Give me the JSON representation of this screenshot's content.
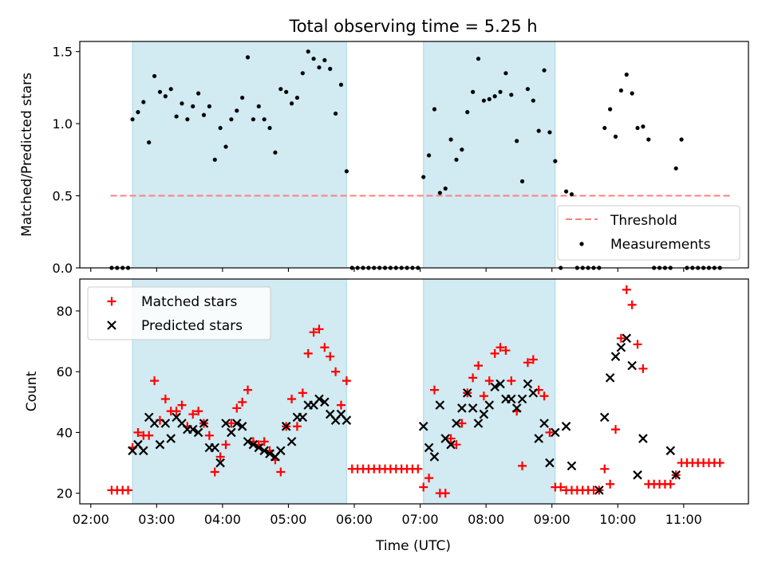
{
  "title": "Total observing time = 5.25 h",
  "colors": {
    "shade": "#add8e6",
    "threshold": "#ff7f7f",
    "matched": "#ff0000",
    "predicted": "#000000",
    "measurements": "#000000"
  },
  "chart_data": [
    {
      "type": "scatter",
      "ylabel": "Matched/Predicted stars",
      "xlabel": "",
      "xlim": [
        "01:50",
        "11:59"
      ],
      "ylim": [
        0,
        1.57
      ],
      "yticks": [
        "0.0",
        "0.5",
        "1.0",
        "1.5"
      ],
      "ytick_values": [
        0,
        0.5,
        1.0,
        1.5
      ],
      "legend_position": "lower-right",
      "shaded_intervals": [
        [
          "02:38",
          "05:53"
        ],
        [
          "07:03",
          "09:03"
        ]
      ],
      "threshold": {
        "name": "Threshold",
        "value": 0.5,
        "x_range": [
          "02:18",
          "11:43"
        ]
      },
      "series": [
        {
          "name": "Measurements",
          "marker": "dot",
          "x": [
            "02:19",
            "02:24",
            "02:29",
            "02:34",
            "02:38",
            "02:43",
            "02:48",
            "02:53",
            "02:58",
            "03:03",
            "03:08",
            "03:13",
            "03:18",
            "03:23",
            "03:28",
            "03:33",
            "03:38",
            "03:43",
            "03:48",
            "03:53",
            "03:58",
            "04:03",
            "04:08",
            "04:13",
            "04:18",
            "04:23",
            "04:28",
            "04:33",
            "04:38",
            "04:43",
            "04:48",
            "04:53",
            "04:58",
            "05:03",
            "05:08",
            "05:13",
            "05:18",
            "05:23",
            "05:28",
            "05:33",
            "05:38",
            "05:43",
            "05:48",
            "05:53",
            "05:58",
            "06:03",
            "06:08",
            "06:13",
            "06:18",
            "06:23",
            "06:28",
            "06:33",
            "06:38",
            "06:43",
            "06:48",
            "06:53",
            "06:58",
            "07:03",
            "07:08",
            "07:13",
            "07:18",
            "07:23",
            "07:28",
            "07:33",
            "07:38",
            "07:43",
            "07:48",
            "07:53",
            "07:58",
            "08:03",
            "08:08",
            "08:13",
            "08:18",
            "08:23",
            "08:28",
            "08:33",
            "08:38",
            "08:43",
            "08:48",
            "08:53",
            "08:58",
            "09:03",
            "09:08",
            "09:13",
            "09:18",
            "09:23",
            "09:28",
            "09:33",
            "09:38",
            "09:43",
            "09:48",
            "09:53",
            "09:58",
            "10:03",
            "10:08",
            "10:13",
            "10:18",
            "10:23",
            "10:28",
            "10:33",
            "10:38",
            "10:43",
            "10:48",
            "10:53",
            "10:58",
            "11:03",
            "11:08",
            "11:13",
            "11:18",
            "11:23",
            "11:28",
            "11:33"
          ],
          "y": [
            0,
            0,
            0,
            0,
            1.03,
            1.08,
            1.15,
            0.87,
            1.33,
            1.22,
            1.19,
            1.24,
            1.05,
            1.14,
            1.03,
            1.12,
            1.21,
            1.06,
            1.12,
            0.75,
            0.97,
            0.84,
            1.03,
            1.09,
            1.18,
            1.46,
            1.03,
            1.12,
            1.03,
            0.97,
            0.8,
            1.24,
            1.22,
            1.14,
            1.18,
            1.35,
            1.5,
            1.45,
            1.39,
            1.44,
            1.38,
            1.07,
            1.27,
            0.67,
            0,
            0,
            0,
            0,
            0,
            0,
            0,
            0,
            0,
            0,
            0,
            0,
            0,
            0.63,
            0.78,
            1.1,
            0.52,
            0.55,
            0.89,
            0.75,
            0.82,
            1.08,
            1.22,
            1.45,
            1.16,
            1.17,
            1.19,
            1.22,
            1.35,
            1.2,
            0.88,
            0.6,
            1.24,
            1.16,
            0.95,
            1.37,
            0.94,
            0.74,
            0,
            0.53,
            0.51,
            0,
            0,
            0,
            0,
            0,
            0.97,
            1.1,
            0.91,
            1.23,
            1.34,
            1.21,
            0.97,
            0.98,
            0.89,
            0,
            0,
            0,
            0,
            0.69,
            0.89,
            0,
            0,
            0,
            0,
            0,
            0,
            0
          ]
        }
      ]
    },
    {
      "type": "scatter",
      "xlabel": "Time (UTC)",
      "ylabel": "Count",
      "xlim": [
        "01:50",
        "11:59"
      ],
      "ylim": [
        16.5,
        90.5
      ],
      "yticks": [
        "20",
        "40",
        "60",
        "80"
      ],
      "ytick_values": [
        20,
        40,
        60,
        80
      ],
      "xticks": [
        "02:00",
        "03:00",
        "04:00",
        "05:00",
        "06:00",
        "07:00",
        "08:00",
        "09:00",
        "10:00",
        "11:00"
      ],
      "legend_position": "upper-left",
      "shaded_intervals": [
        [
          "02:38",
          "05:53"
        ],
        [
          "07:03",
          "09:03"
        ]
      ],
      "series": [
        {
          "name": "Matched stars",
          "marker": "plus",
          "x": [
            "02:19",
            "02:24",
            "02:29",
            "02:34",
            "02:38",
            "02:43",
            "02:48",
            "02:53",
            "02:58",
            "03:03",
            "03:08",
            "03:13",
            "03:18",
            "03:23",
            "03:28",
            "03:33",
            "03:38",
            "03:43",
            "03:48",
            "03:53",
            "03:58",
            "04:03",
            "04:08",
            "04:13",
            "04:18",
            "04:23",
            "04:28",
            "04:33",
            "04:38",
            "04:43",
            "04:48",
            "04:53",
            "04:58",
            "05:03",
            "05:08",
            "05:13",
            "05:18",
            "05:23",
            "05:28",
            "05:33",
            "05:38",
            "05:43",
            "05:48",
            "05:53",
            "05:58",
            "06:03",
            "06:08",
            "06:13",
            "06:18",
            "06:23",
            "06:28",
            "06:33",
            "06:38",
            "06:43",
            "06:48",
            "06:53",
            "06:58",
            "07:03",
            "07:08",
            "07:13",
            "07:18",
            "07:23",
            "07:28",
            "07:33",
            "07:38",
            "07:43",
            "07:48",
            "07:53",
            "07:58",
            "08:03",
            "08:08",
            "08:13",
            "08:18",
            "08:23",
            "08:28",
            "08:33",
            "08:38",
            "08:43",
            "08:48",
            "08:53",
            "08:58",
            "09:03",
            "09:08",
            "09:13",
            "09:18",
            "09:23",
            "09:28",
            "09:33",
            "09:38",
            "09:43",
            "09:48",
            "09:53",
            "09:58",
            "10:03",
            "10:08",
            "10:13",
            "10:18",
            "10:23",
            "10:28",
            "10:33",
            "10:38",
            "10:43",
            "10:48",
            "10:53",
            "10:58",
            "11:03",
            "11:08",
            "11:13",
            "11:18",
            "11:23",
            "11:28",
            "11:33"
          ],
          "y": [
            21,
            21,
            21,
            21,
            35,
            40,
            39,
            39,
            57,
            44,
            51,
            47,
            47,
            49,
            42,
            46,
            47,
            43,
            39,
            27,
            32,
            36,
            43,
            48,
            50,
            54,
            37,
            36,
            37,
            34,
            31,
            27,
            42,
            51,
            42,
            53,
            66,
            73,
            74,
            68,
            65,
            60,
            49,
            57,
            28,
            28,
            28,
            28,
            28,
            28,
            28,
            28,
            28,
            28,
            28,
            28,
            28,
            22,
            25,
            54,
            20,
            20,
            38,
            36,
            43,
            53,
            58,
            62,
            52,
            57,
            66,
            68,
            67,
            57,
            47,
            29,
            63,
            64,
            54,
            52,
            40,
            22,
            22,
            21,
            21,
            21,
            21,
            21,
            21,
            21,
            28,
            23,
            41,
            71,
            87,
            82,
            69,
            61,
            23,
            23,
            23,
            23,
            23,
            26,
            30,
            30,
            30,
            30,
            30,
            30,
            30,
            30
          ]
        },
        {
          "name": "Predicted stars",
          "marker": "x",
          "x": [
            "02:38",
            "02:43",
            "02:48",
            "02:53",
            "02:58",
            "03:03",
            "03:08",
            "03:13",
            "03:18",
            "03:23",
            "03:28",
            "03:33",
            "03:38",
            "03:43",
            "03:48",
            "03:53",
            "03:58",
            "04:03",
            "04:08",
            "04:13",
            "04:18",
            "04:23",
            "04:28",
            "04:33",
            "04:38",
            "04:43",
            "04:48",
            "04:53",
            "04:58",
            "05:03",
            "05:08",
            "05:13",
            "05:18",
            "05:23",
            "05:28",
            "05:33",
            "05:38",
            "05:43",
            "05:48",
            "05:53",
            "07:03",
            "07:08",
            "07:13",
            "07:18",
            "07:23",
            "07:28",
            "07:33",
            "07:38",
            "07:43",
            "07:48",
            "07:53",
            "07:58",
            "08:03",
            "08:08",
            "08:13",
            "08:18",
            "08:23",
            "08:28",
            "08:33",
            "08:38",
            "08:43",
            "08:48",
            "08:53",
            "08:58",
            "09:03",
            "09:13",
            "09:18",
            "09:43",
            "09:48",
            "09:53",
            "09:58",
            "10:03",
            "10:08",
            "10:13",
            "10:18",
            "10:23",
            "10:48",
            "10:53"
          ],
          "y": [
            34,
            36,
            34,
            45,
            43,
            36,
            43,
            38,
            45,
            43,
            41,
            41,
            40,
            43,
            35,
            35,
            30,
            43,
            40,
            43,
            42,
            37,
            36,
            35,
            34,
            33,
            32,
            34,
            42,
            37,
            45,
            45,
            49,
            49,
            51,
            50,
            46,
            44,
            46,
            44,
            42,
            35,
            32,
            49,
            38,
            36,
            43,
            48,
            53,
            48,
            43,
            46,
            49,
            55,
            56,
            51,
            51,
            48,
            51,
            56,
            53,
            38,
            43,
            30,
            40,
            42,
            29,
            21,
            45,
            58,
            65,
            68,
            71,
            62,
            26,
            38,
            34,
            26
          ]
        }
      ]
    }
  ]
}
